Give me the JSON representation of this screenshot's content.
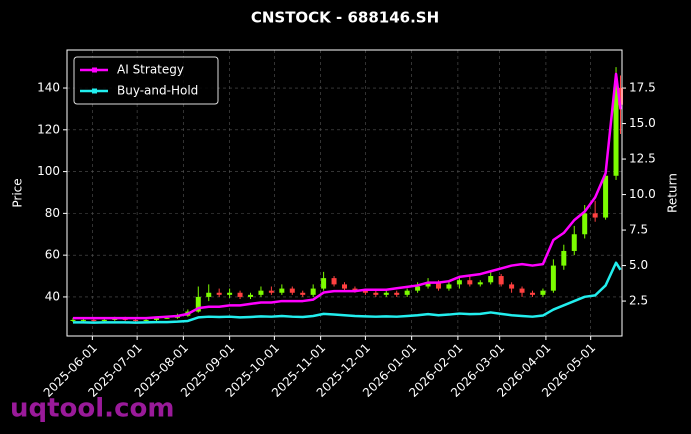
{
  "chart_data": {
    "type": "candlestick",
    "title": "CNSTOCK - 688146.SH",
    "ylabel": "Price",
    "y2label": "Return",
    "watermark": "uqtool.com",
    "x": [
      "2025-05-19",
      "2025-05-26",
      "2025-06-02",
      "2025-06-09",
      "2025-06-16",
      "2025-06-23",
      "2025-06-30",
      "2025-07-07",
      "2025-07-14",
      "2025-07-21",
      "2025-07-28",
      "2025-08-04",
      "2025-08-11",
      "2025-08-18",
      "2025-08-25",
      "2025-09-01",
      "2025-09-08",
      "2025-09-15",
      "2025-09-22",
      "2025-09-29",
      "2025-10-06",
      "2025-10-13",
      "2025-10-20",
      "2025-10-27",
      "2025-11-03",
      "2025-11-10",
      "2025-11-17",
      "2025-11-24",
      "2025-12-01",
      "2025-12-08",
      "2025-12-15",
      "2025-12-22",
      "2025-12-29",
      "2026-01-05",
      "2026-01-12",
      "2026-01-19",
      "2026-01-26",
      "2026-02-02",
      "2026-02-09",
      "2026-02-16",
      "2026-02-23",
      "2026-03-02",
      "2026-03-09",
      "2026-03-16",
      "2026-03-23",
      "2026-03-30",
      "2026-04-06",
      "2026-04-13",
      "2026-04-20",
      "2026-04-27",
      "2026-05-04",
      "2026-05-11",
      "2026-05-18",
      "2026-05-21"
    ],
    "open": [
      28.5,
      29,
      29,
      28.5,
      29,
      29.5,
      29,
      28.5,
      29,
      30,
      30,
      31,
      33,
      40,
      42,
      41,
      42,
      40,
      41,
      43,
      42,
      44,
      42,
      41,
      44,
      49,
      46,
      44,
      43,
      42,
      41,
      42,
      41,
      43,
      45,
      47,
      44,
      46,
      48,
      46,
      47,
      50,
      46,
      44,
      42,
      41,
      43,
      55,
      62,
      70,
      80,
      78,
      98,
      140
    ],
    "high": [
      30,
      30,
      30,
      29.5,
      30.5,
      30.5,
      30,
      29.5,
      30.5,
      31,
      32,
      34,
      45,
      46,
      44,
      44,
      43,
      42,
      45,
      45,
      46,
      45,
      43,
      46,
      52,
      50,
      47,
      45,
      44,
      43,
      43,
      43,
      44,
      47,
      49,
      48,
      47,
      49,
      50,
      48,
      52,
      51,
      47,
      45,
      43,
      44,
      58,
      65,
      74,
      84,
      86,
      102,
      150,
      146
    ],
    "low": [
      28,
      28,
      28,
      27.5,
      28.5,
      28.5,
      28,
      28,
      28.5,
      29.5,
      29.5,
      30.5,
      32.5,
      38,
      40,
      39.5,
      39,
      39,
      40,
      41,
      41,
      41,
      40,
      40,
      43,
      45,
      43,
      42,
      41,
      40,
      40,
      40,
      40,
      42,
      44,
      43,
      43,
      44,
      45,
      45,
      46,
      45,
      42,
      40,
      40,
      40,
      42,
      53,
      60,
      68,
      76,
      77,
      96,
      118
    ],
    "close": [
      29,
      29,
      28.5,
      29,
      29.5,
      29,
      28.5,
      29,
      30,
      30,
      31,
      33,
      40,
      42,
      41,
      42,
      40,
      41,
      43,
      42,
      44,
      42,
      41,
      44,
      49,
      46,
      44,
      43,
      42,
      41,
      42,
      41,
      43,
      45,
      47,
      44,
      46,
      48,
      46,
      47,
      50,
      46,
      44,
      42,
      41,
      43,
      55,
      62,
      70,
      80,
      78,
      98,
      140,
      132
    ],
    "up_color": "#7cfc00",
    "down_color": "#ff4040",
    "series": [
      {
        "name": "AI Strategy",
        "color": "#ff00ff",
        "axis": "y2",
        "values": [
          1.3,
          1.3,
          1.3,
          1.3,
          1.3,
          1.3,
          1.3,
          1.3,
          1.35,
          1.4,
          1.45,
          1.6,
          2.0,
          2.1,
          2.1,
          2.2,
          2.2,
          2.3,
          2.4,
          2.4,
          2.5,
          2.5,
          2.5,
          2.6,
          3.1,
          3.2,
          3.2,
          3.2,
          3.3,
          3.3,
          3.3,
          3.4,
          3.5,
          3.6,
          3.8,
          3.8,
          3.9,
          4.2,
          4.3,
          4.4,
          4.6,
          4.8,
          5.0,
          5.1,
          5.0,
          5.1,
          6.8,
          7.3,
          8.2,
          8.8,
          9.8,
          11.5,
          18.5,
          16.0
        ]
      },
      {
        "name": "Buy-and-Hold",
        "color": "#22eeee",
        "axis": "y2",
        "values": [
          1.0,
          1.0,
          0.98,
          1.0,
          1.0,
          1.0,
          0.98,
          1.0,
          1.02,
          1.02,
          1.05,
          1.1,
          1.35,
          1.4,
          1.38,
          1.4,
          1.35,
          1.38,
          1.42,
          1.4,
          1.45,
          1.4,
          1.38,
          1.45,
          1.6,
          1.55,
          1.5,
          1.45,
          1.42,
          1.4,
          1.42,
          1.4,
          1.45,
          1.5,
          1.58,
          1.5,
          1.55,
          1.62,
          1.58,
          1.6,
          1.7,
          1.6,
          1.5,
          1.45,
          1.4,
          1.48,
          1.9,
          2.2,
          2.5,
          2.8,
          2.9,
          3.6,
          5.2,
          4.7
        ]
      }
    ],
    "xlim": [
      "2025-05-15",
      "2026-05-22"
    ],
    "xticks": [
      "2025-06-01",
      "2025-07-01",
      "2025-08-01",
      "2025-09-01",
      "2025-10-01",
      "2025-11-01",
      "2025-12-01",
      "2026-01-01",
      "2026-02-01",
      "2026-03-01",
      "2026-04-01",
      "2026-05-01"
    ],
    "ylim": [
      21.3,
      158.2
    ],
    "yticks": [
      40,
      60,
      80,
      100,
      120,
      140
    ],
    "y2lim": [
      0.04,
      20.18
    ],
    "y2ticks": [
      2.5,
      {
        "value": 5,
        "label": "5.0"
      },
      7.5,
      {
        "value": 10,
        "label": "10.0"
      },
      12.5,
      {
        "value": 15,
        "label": "15.0"
      },
      17.5
    ],
    "grid": true,
    "legend": "upper left"
  }
}
